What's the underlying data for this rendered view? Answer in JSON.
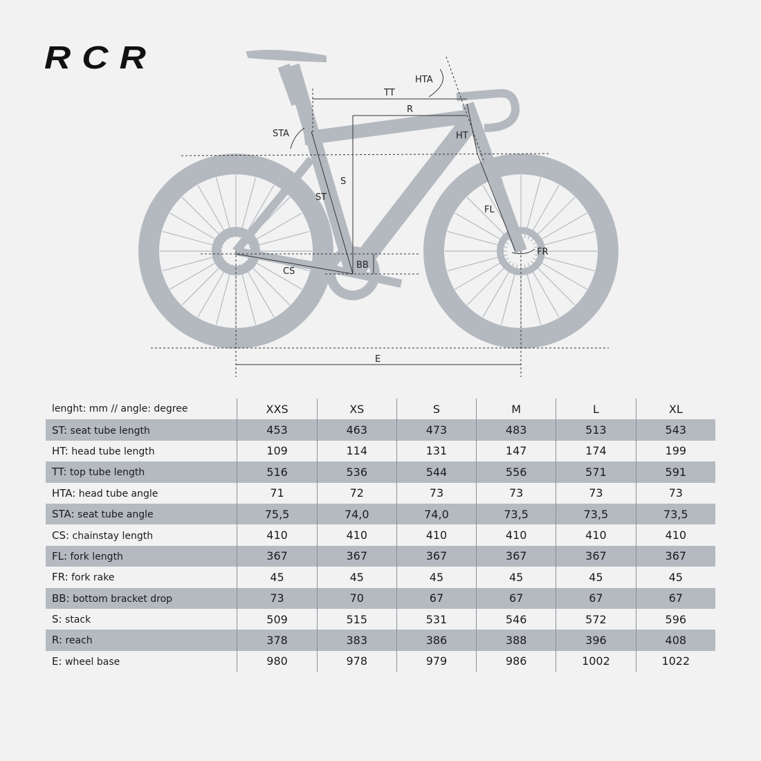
{
  "logo": "RCR",
  "diagram_labels": {
    "TT": "TT",
    "R": "R",
    "HTA": "HTA",
    "STA": "STA",
    "HT": "HT",
    "S": "S",
    "ST": "ST",
    "FL": "FL",
    "FR": "FR",
    "BB": "BB",
    "CS": "CS",
    "E": "E"
  },
  "colors": {
    "background": "#f2f2f2",
    "bike": "#b4b9c0",
    "stripe": "#b5bac1",
    "lines": "#333333"
  },
  "table": {
    "units_label": "lenght: mm // angle: degree",
    "sizes": [
      "XXS",
      "XS",
      "S",
      "M",
      "L",
      "XL"
    ],
    "rows": [
      {
        "abbr": "ST:",
        "name": "seat tube length",
        "values": [
          "453",
          "463",
          "473",
          "483",
          "513",
          "543"
        ]
      },
      {
        "abbr": "HT:",
        "name": "head tube length",
        "values": [
          "109",
          "114",
          "131",
          "147",
          "174",
          "199"
        ]
      },
      {
        "abbr": "TT:",
        "name": "top tube length",
        "values": [
          "516",
          "536",
          "544",
          "556",
          "571",
          "591"
        ]
      },
      {
        "abbr": "HTA:",
        "name": "head tube angle",
        "values": [
          "71",
          "72",
          "73",
          "73",
          "73",
          "73"
        ]
      },
      {
        "abbr": "STA:",
        "name": "seat tube angle",
        "values": [
          "75,5",
          "74,0",
          "74,0",
          "73,5",
          "73,5",
          "73,5"
        ]
      },
      {
        "abbr": "CS:",
        "name": "chainstay length",
        "values": [
          "410",
          "410",
          "410",
          "410",
          "410",
          "410"
        ]
      },
      {
        "abbr": "FL:",
        "name": "fork length",
        "values": [
          "367",
          "367",
          "367",
          "367",
          "367",
          "367"
        ]
      },
      {
        "abbr": "FR:",
        "name": "fork rake",
        "values": [
          "45",
          "45",
          "45",
          "45",
          "45",
          "45"
        ]
      },
      {
        "abbr": "BB:",
        "name": "bottom bracket drop",
        "values": [
          "73",
          "70",
          "67",
          "67",
          "67",
          "67"
        ]
      },
      {
        "abbr": "S:",
        "name": "stack",
        "values": [
          "509",
          "515",
          "531",
          "546",
          "572",
          "596"
        ]
      },
      {
        "abbr": "R:",
        "name": "reach",
        "values": [
          "378",
          "383",
          "386",
          "388",
          "396",
          "408"
        ]
      },
      {
        "abbr": "E:",
        "name": "wheel base",
        "values": [
          "980",
          "978",
          "979",
          "986",
          "1002",
          "1022"
        ]
      }
    ]
  }
}
